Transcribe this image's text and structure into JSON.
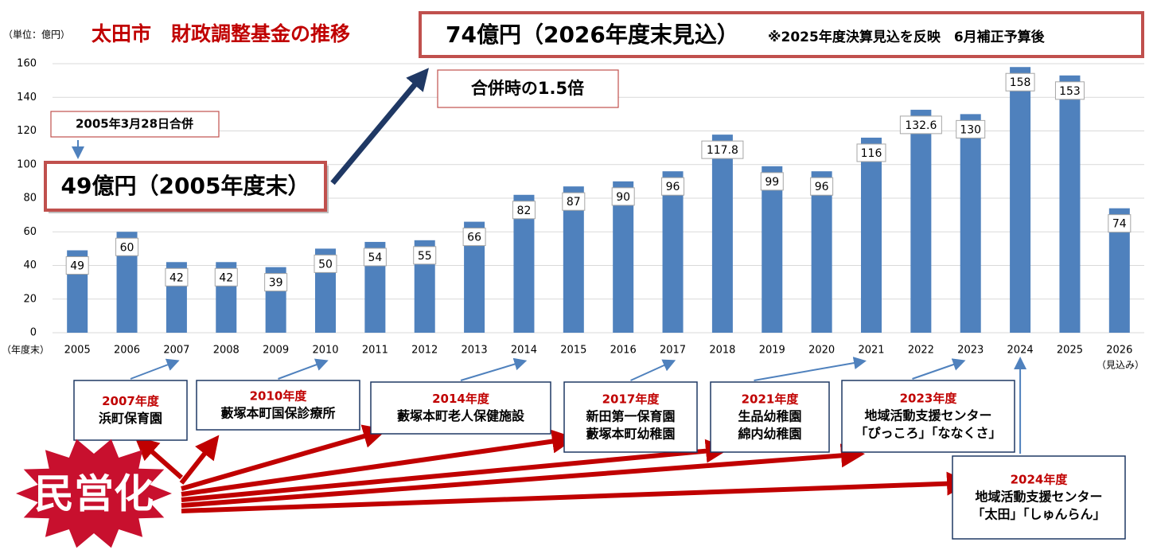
{
  "chart_data": {
    "type": "bar",
    "title": "太田市　財政調整基金の推移",
    "y_unit": "（単位：億円）",
    "x_unit": "（年度末）",
    "x_note": "（見込み）",
    "categories": [
      "2005",
      "2006",
      "2007",
      "2008",
      "2009",
      "2010",
      "2011",
      "2012",
      "2013",
      "2014",
      "2015",
      "2016",
      "2017",
      "2018",
      "2019",
      "2020",
      "2021",
      "2022",
      "2023",
      "2024",
      "2025",
      "2026"
    ],
    "values": [
      49,
      60,
      42,
      42,
      39,
      50,
      54,
      55,
      66,
      82,
      87,
      90,
      96,
      117.8,
      99,
      96,
      116,
      132.6,
      130,
      158,
      153,
      74
    ],
    "color": "#4f81bd",
    "ylim": [
      0,
      160
    ],
    "yticks": [
      0,
      20,
      40,
      60,
      80,
      100,
      120,
      140,
      160
    ],
    "grid": true,
    "annotations": {
      "headline": "74億円（2026年度末見込）",
      "headline_note": "※2025年度決算見込を反映　6月補正予算後",
      "ratio": "合併時の1.5倍",
      "merger": "2005年3月28日合併",
      "start": "49億円（2005年度末）"
    },
    "privatization": {
      "badge": "民営化",
      "items": [
        {
          "year": "2007年度",
          "lines": [
            "浜町保育園"
          ]
        },
        {
          "year": "2010年度",
          "lines": [
            "藪塚本町国保診療所"
          ]
        },
        {
          "year": "2014年度",
          "lines": [
            "藪塚本町老人保健施設"
          ]
        },
        {
          "year": "2017年度",
          "lines": [
            "新田第一保育園",
            "藪塚本町幼稚園"
          ]
        },
        {
          "year": "2021年度",
          "lines": [
            "生品幼稚園",
            "綿内幼稚園"
          ]
        },
        {
          "year": "2023年度",
          "lines": [
            "地域活動支援センター",
            "「ぴっころ」「ななくさ」"
          ]
        },
        {
          "year": "2024年度",
          "lines": [
            "地域活動支援センター",
            "「太田」「しゅんらん」"
          ]
        }
      ]
    }
  }
}
